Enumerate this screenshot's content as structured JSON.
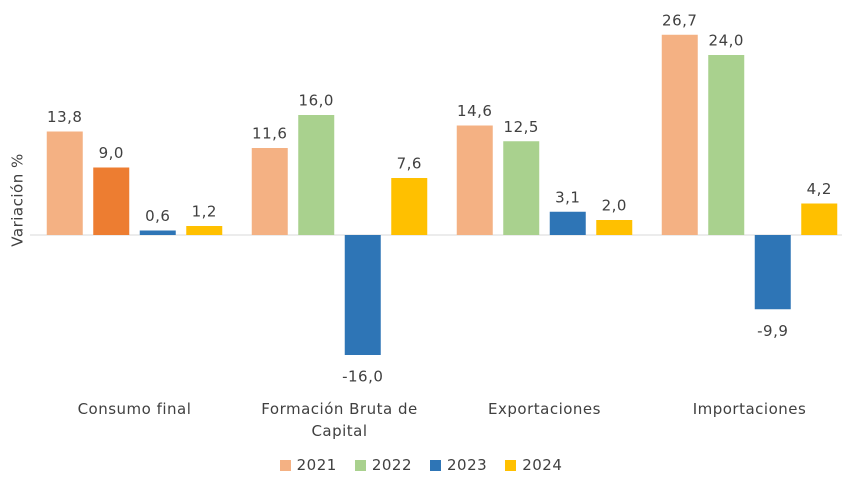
{
  "chart_data": {
    "type": "bar",
    "y_label": "Variación %",
    "categories": [
      "Consumo final",
      "Formación Bruta de Capital",
      "Exportaciones",
      "Importaciones"
    ],
    "series": [
      {
        "name": "2021",
        "color": "#F4B183",
        "values": [
          13.8,
          11.6,
          14.6,
          26.7
        ],
        "value_labels": [
          "13,8",
          "11,6",
          "14,6",
          "26,7"
        ]
      },
      {
        "name": "2022",
        "color": "#A9D18E",
        "colors": [
          "#ED7D31",
          "#A9D18E",
          "#A9D18E",
          "#A9D18E"
        ],
        "values": [
          9.0,
          16.0,
          12.5,
          24.0
        ],
        "value_labels": [
          "9,0",
          "16,0",
          "12,5",
          "24,0"
        ]
      },
      {
        "name": "2023",
        "color": "#2E75B6",
        "values": [
          0.6,
          -16.0,
          3.1,
          -9.9
        ],
        "value_labels": [
          "0,6",
          "-16,0",
          "3,1",
          "-9,9"
        ]
      },
      {
        "name": "2024",
        "color": "#FFC000",
        "values": [
          1.2,
          7.6,
          2.0,
          4.2
        ],
        "value_labels": [
          "1,2",
          "7,6",
          "2,0",
          "4,2"
        ]
      }
    ],
    "ylim": [
      -20,
      30
    ]
  }
}
